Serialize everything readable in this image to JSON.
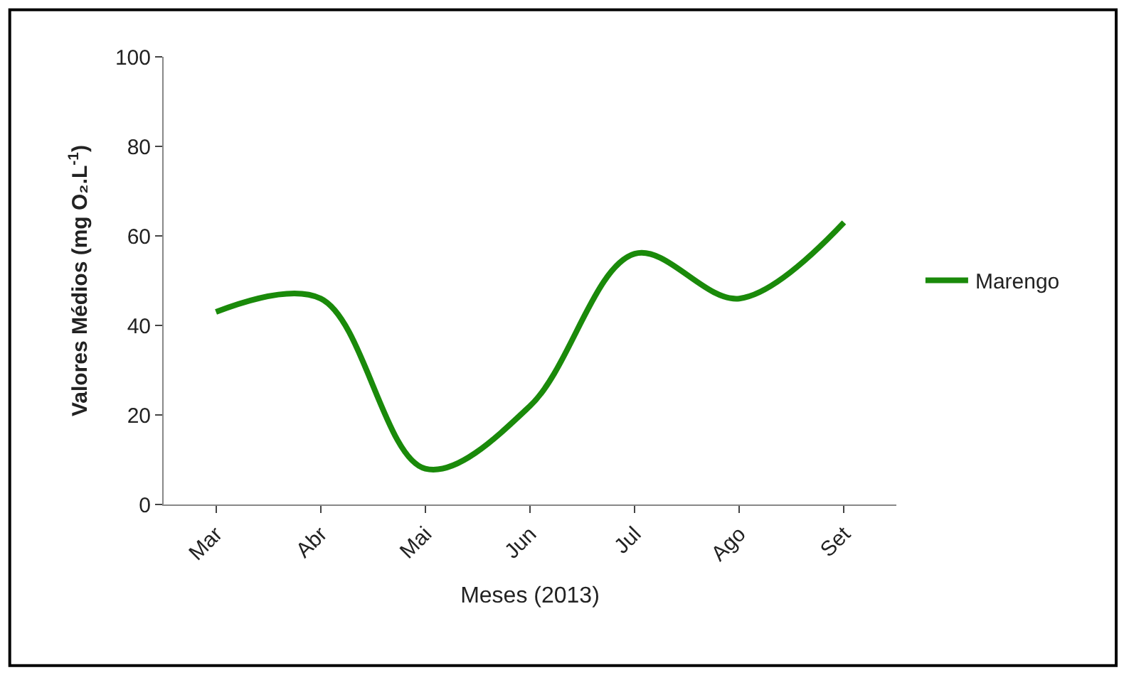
{
  "chart_data": {
    "type": "line",
    "xlabel": "Meses (2013)",
    "ylabel": "Valores Médios (mg O₂.L$^{-1}$)",
    "categories": [
      "Mar",
      "Abr",
      "Mai",
      "Jun",
      "Jul",
      "Ago",
      "Set"
    ],
    "series": [
      {
        "name": "Marengo",
        "color": "#1a8a0a",
        "values": [
          43,
          46,
          8,
          22,
          56,
          46,
          63
        ]
      }
    ],
    "ylim": [
      0,
      100
    ],
    "yticks": [
      0,
      20,
      40,
      60,
      80,
      100
    ],
    "legend": "right",
    "marker": "none",
    "line_style": "solid"
  }
}
